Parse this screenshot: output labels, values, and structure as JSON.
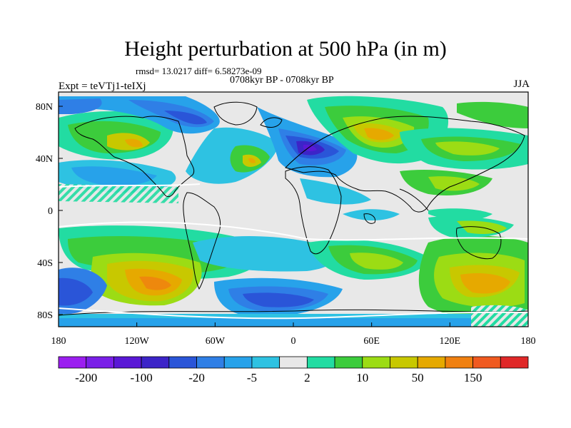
{
  "title": "Height perturbation at 500 hPa (in m)",
  "subtitle_stats": "rmsd= 13.0217 diff= 6.58273e-09",
  "subtitle_time": "0708kyr BP - 0708kyr BP",
  "subtitle_expt": "Expt = teVTj1-teIXj",
  "subtitle_season": "JJA",
  "x_ticks": [
    "180",
    "120W",
    "60W",
    "0",
    "60E",
    "120E",
    "180"
  ],
  "y_ticks": [
    "80N",
    "40N",
    "0",
    "40S",
    "80S"
  ],
  "colorbar": {
    "colors": [
      "#9b1ef0",
      "#7a1fe8",
      "#5a18d6",
      "#3c24c8",
      "#2a55d8",
      "#2f7fe6",
      "#27a2ea",
      "#2ec2e2",
      "#e8e8e8",
      "#22dca2",
      "#3ccc3c",
      "#9cdc14",
      "#c8c800",
      "#e6a900",
      "#f08010",
      "#f05a20",
      "#e02828"
    ],
    "labels": [
      "-200",
      "-100",
      "-20",
      "-5",
      "2",
      "10",
      "50",
      "150"
    ]
  }
}
